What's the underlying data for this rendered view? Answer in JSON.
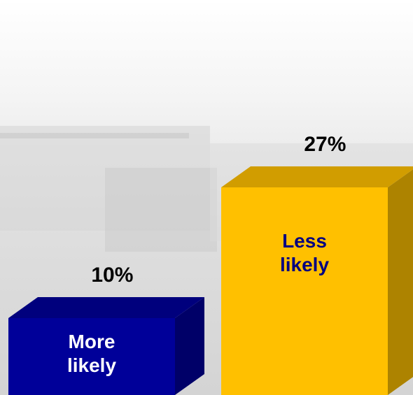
{
  "chart_data": {
    "type": "bar3d",
    "categories": [
      "More likely",
      "Less likely"
    ],
    "values": [
      10,
      27
    ],
    "value_labels": [
      "10%",
      "27%"
    ],
    "colors": [
      "#000099",
      "#ffc000"
    ],
    "label_colors": [
      "#ffffff",
      "#000080"
    ]
  }
}
